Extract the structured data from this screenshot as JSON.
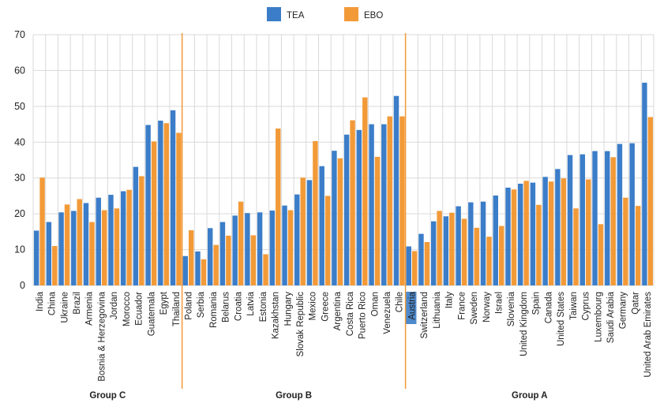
{
  "colors": {
    "tea": "#3b7dc8",
    "ebo": "#f29a38",
    "divider": "#f29a38",
    "grid": "#d9d9d9",
    "axis_text": "#222222",
    "highlight": "#3b7dc8"
  },
  "chart_data": {
    "type": "bar",
    "ylim": [
      0,
      70
    ],
    "yticks": [
      0,
      10,
      20,
      30,
      40,
      50,
      60,
      70
    ],
    "grid": true,
    "legend_position": "top-center",
    "series": [
      {
        "name": "TEA",
        "key": "tea"
      },
      {
        "name": "EBO",
        "key": "ebo"
      }
    ],
    "groups": [
      {
        "label": "Group C",
        "categories": [
          "India",
          "China",
          "Ukraine",
          "Brazil",
          "Armenia",
          "Bosnia & Herzegovina",
          "Jordan",
          "Morocco",
          "Ecuador",
          "Guatemala",
          "Egypt",
          "Thailand"
        ],
        "tea": [
          15.3,
          17.7,
          20.4,
          20.8,
          23.0,
          24.5,
          25.3,
          26.3,
          33.1,
          44.8,
          46.0,
          48.9
        ],
        "ebo": [
          30.1,
          11.0,
          22.6,
          24.1,
          17.7,
          21.0,
          21.5,
          26.7,
          30.5,
          40.2,
          45.3,
          42.6
        ]
      },
      {
        "label": "Group B",
        "categories": [
          "Poland",
          "Serbia",
          "Romania",
          "Belarus",
          "Croatia",
          "Latvia",
          "Estonia",
          "Kazakhstan",
          "Hungary",
          "Slovak Republic",
          "Mexico",
          "Greece",
          "Argentina",
          "Costa Rica",
          "Puerto Rico",
          "Oman",
          "Venezuela",
          "Chile"
        ],
        "tea": [
          8.2,
          9.5,
          16.0,
          17.7,
          19.5,
          20.2,
          20.4,
          20.9,
          22.3,
          25.4,
          29.4,
          33.3,
          37.6,
          42.1,
          43.4,
          45.0,
          45.0,
          52.9
        ],
        "ebo": [
          15.4,
          7.3,
          11.3,
          13.9,
          23.4,
          14.0,
          8.7,
          43.8,
          21.0,
          30.1,
          40.3,
          25.0,
          35.5,
          46.1,
          52.5,
          35.9,
          47.2,
          47.2
        ]
      },
      {
        "label": "Group A",
        "categories": [
          "Austria",
          "Switzerland",
          "Lithuania",
          "Italy",
          "France",
          "Sweden",
          "Norway",
          "Israel",
          "Slovenia",
          "United Kingdom",
          "Spain",
          "Canada",
          "United States",
          "Taiwan",
          "Cyprus",
          "Luxembourg",
          "Saudi Arabia",
          "Germany",
          "Qatar",
          "United Arab Emirates"
        ],
        "tea": [
          10.9,
          14.4,
          17.9,
          19.3,
          22.1,
          23.2,
          23.4,
          25.1,
          27.3,
          28.4,
          28.7,
          30.3,
          32.5,
          36.4,
          36.6,
          37.5,
          37.5,
          39.5,
          39.7,
          56.6
        ],
        "ebo": [
          9.6,
          12.1,
          20.8,
          20.3,
          18.6,
          16.1,
          13.6,
          16.6,
          26.8,
          29.2,
          22.5,
          29.0,
          29.9,
          21.5,
          29.6,
          17.1,
          35.8,
          24.5,
          22.2,
          47.0
        ]
      }
    ],
    "highlighted_category": "Austria"
  }
}
